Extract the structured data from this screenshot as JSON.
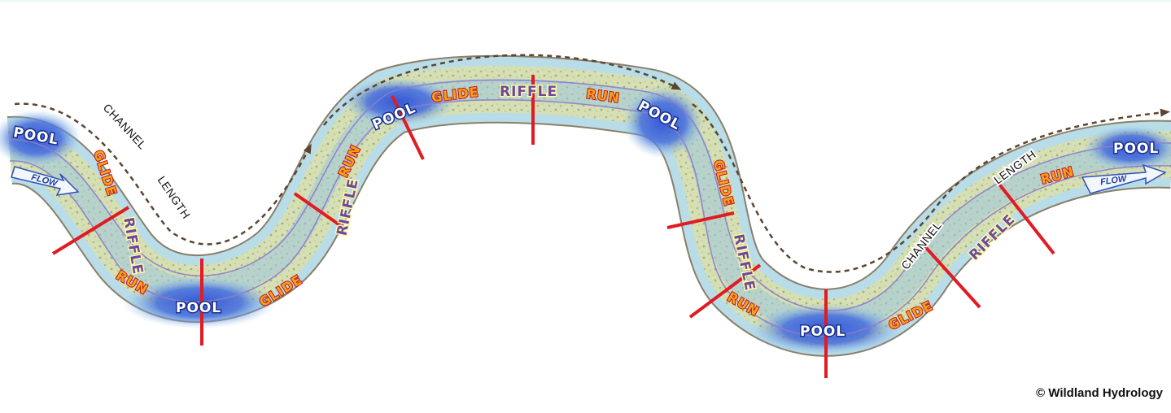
{
  "labels": {
    "pool": "POOL",
    "glide": "GLIDE",
    "riffle": "RIFFLE",
    "run": "RUN",
    "flow": "FLOW",
    "channel": "CHANNEL",
    "length": "LENGTH"
  },
  "copyright": "© Wildland Hydrology",
  "colors": {
    "pool_blue": "#3d5fd8",
    "light_water": "#b9dde8",
    "gravel": "#cfd9a6",
    "bank": "#8a7f6a",
    "thalweg_line": "#8c7ccd",
    "section_line": "#e01b24",
    "arrow": "#5a4530"
  }
}
